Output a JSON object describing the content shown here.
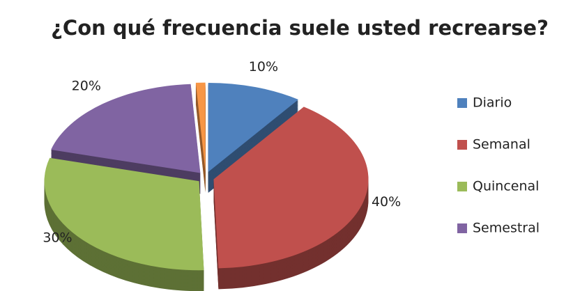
{
  "chart_data": {
    "type": "pie",
    "title": "¿Con qué frecuencia suele usted recrearse?",
    "categories": [
      "Diario",
      "Semanal",
      "Quincenal",
      "Semestral",
      null
    ],
    "values": [
      10,
      40,
      30,
      20,
      1
    ],
    "value_labels": [
      "10%",
      "40%",
      "30%",
      "20%",
      null
    ],
    "colors": [
      "#4f81bd",
      "#c0504d",
      "#9bbb59",
      "#8064a2",
      "#f79646"
    ],
    "legend": "right"
  }
}
